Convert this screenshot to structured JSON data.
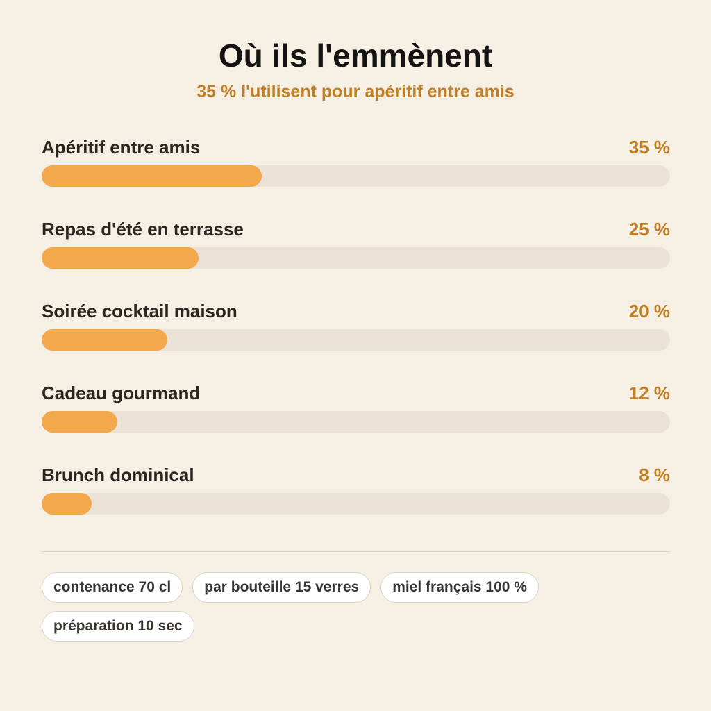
{
  "header": {
    "title": "Où ils l'emmènent",
    "subtitle": "35 % l'utilisent pour apéritif entre amis"
  },
  "chart_data": {
    "type": "bar",
    "orientation": "horizontal",
    "title": "Où ils l'emmènent",
    "subtitle": "35 % l'utilisent pour apéritif entre amis",
    "categories": [
      "Apéritif entre amis",
      "Repas d'été en terrasse",
      "Soirée cocktail maison",
      "Cadeau gourmand",
      "Brunch dominical"
    ],
    "values": [
      35,
      25,
      20,
      12,
      8
    ],
    "value_labels": [
      "35 %",
      "25 %",
      "20 %",
      "12 %",
      "8 %"
    ],
    "xlim": [
      0,
      100
    ],
    "grid": false,
    "legend": "none"
  },
  "chips": [
    "contenance 70 cl",
    "par bouteille 15 verres",
    "miel français 100 %",
    "préparation 10 sec"
  ],
  "colors": {
    "background": "#f6efe4",
    "bar_fill": "#f4a84c",
    "bar_track": "#ebe2d6",
    "accent_text": "#c07f25",
    "title_text": "#161412"
  }
}
